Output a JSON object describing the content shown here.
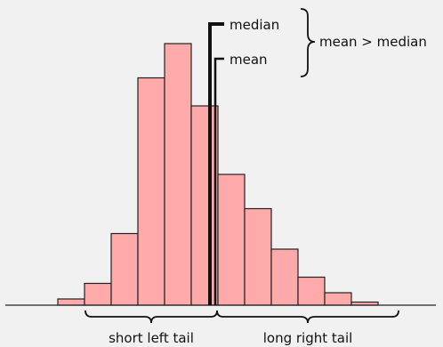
{
  "labels": {
    "median": "median",
    "mean": "mean",
    "comparison": "mean > median",
    "left_tail": "short left tail",
    "right_tail": "long right tail"
  },
  "histogram": {
    "relative_heights": [
      0.02,
      0.07,
      0.23,
      0.73,
      0.84,
      0.64,
      0.42,
      0.31,
      0.18,
      0.09,
      0.04,
      0.01
    ],
    "bar_color": "#ffaaaa",
    "edge_color": "#222222"
  }
}
